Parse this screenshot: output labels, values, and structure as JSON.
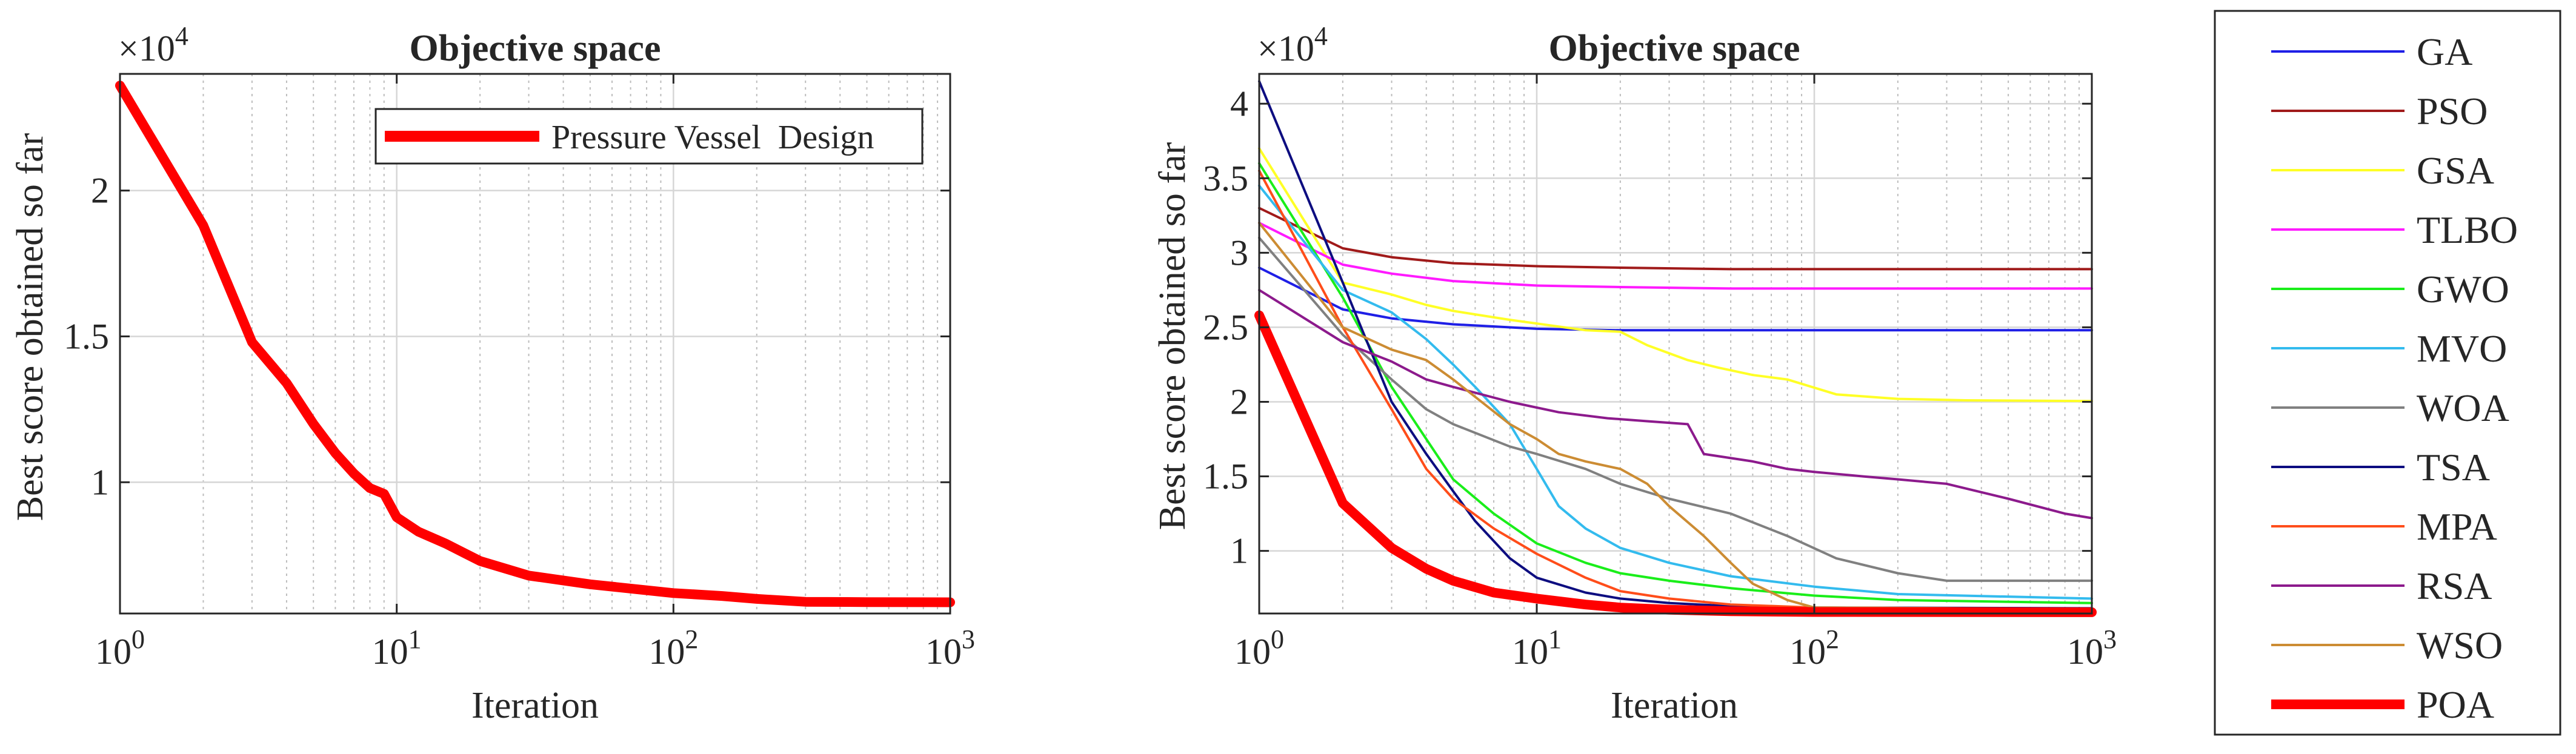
{
  "chart_data": [
    {
      "type": "line",
      "title": "Objective space",
      "xlabel": "Iteration",
      "ylabel": "Best score obtained so far",
      "xscale": "log",
      "xlim": [
        1,
        1000
      ],
      "ylim": [
        5500,
        24000
      ],
      "y_multiplier": "×10^4",
      "y_multiplier_base": "×10",
      "y_multiplier_exp": "4",
      "x_ticks": [
        {
          "value": 1,
          "base": "10",
          "exp": "0"
        },
        {
          "value": 10,
          "base": "10",
          "exp": "1"
        },
        {
          "value": 100,
          "base": "10",
          "exp": "2"
        },
        {
          "value": 1000,
          "base": "10",
          "exp": "3"
        }
      ],
      "y_ticks": [
        {
          "value": 10000,
          "label": "1"
        },
        {
          "value": 15000,
          "label": "1.5"
        },
        {
          "value": 20000,
          "label": "2"
        }
      ],
      "grid": true,
      "legend_position": "top-right",
      "series": [
        {
          "name": "Pressure Vessel  Design",
          "color": "#ff0000",
          "width": "thick",
          "x": [
            1,
            2,
            3,
            4,
            5,
            6,
            7,
            8,
            9,
            10,
            12,
            15,
            20,
            30,
            50,
            100,
            150,
            200,
            300,
            500,
            1000
          ],
          "y": [
            23600,
            18800,
            14800,
            13400,
            12000,
            11000,
            10300,
            9800,
            9600,
            8800,
            8300,
            7900,
            7300,
            6800,
            6500,
            6200,
            6100,
            6000,
            5900,
            5890,
            5885
          ]
        }
      ]
    },
    {
      "type": "line",
      "title": "Objective space",
      "xlabel": "Iteration",
      "ylabel": "Best score obtained so far",
      "xscale": "log",
      "xlim": [
        1,
        1000
      ],
      "ylim": [
        5800,
        42000
      ],
      "y_multiplier": "×10^4",
      "y_multiplier_base": "×10",
      "y_multiplier_exp": "4",
      "x_ticks": [
        {
          "value": 1,
          "base": "10",
          "exp": "0"
        },
        {
          "value": 10,
          "base": "10",
          "exp": "1"
        },
        {
          "value": 100,
          "base": "10",
          "exp": "2"
        },
        {
          "value": 1000,
          "base": "10",
          "exp": "3"
        }
      ],
      "y_ticks": [
        {
          "value": 10000,
          "label": "1"
        },
        {
          "value": 15000,
          "label": "1.5"
        },
        {
          "value": 20000,
          "label": "2"
        },
        {
          "value": 25000,
          "label": "2.5"
        },
        {
          "value": 30000,
          "label": "3"
        },
        {
          "value": 35000,
          "label": "3.5"
        },
        {
          "value": 40000,
          "label": "4"
        }
      ],
      "grid": true,
      "legend_position": "outside-right",
      "series": [
        {
          "name": "GA",
          "color": "#1f1fe6",
          "width": "normal",
          "x": [
            1,
            2,
            3,
            5,
            10,
            20,
            50,
            100,
            1000
          ],
          "y": [
            29000,
            26200,
            25600,
            25200,
            24900,
            24800,
            24800,
            24800,
            24800
          ]
        },
        {
          "name": "PSO",
          "color": "#a01a1a",
          "width": "normal",
          "x": [
            1,
            2,
            3,
            5,
            10,
            20,
            50,
            100,
            1000
          ],
          "y": [
            33000,
            30300,
            29700,
            29300,
            29100,
            29000,
            28900,
            28900,
            28900
          ]
        },
        {
          "name": "GSA",
          "color": "#ffff26",
          "width": "normal",
          "x": [
            1,
            2,
            3,
            4,
            5,
            8,
            15,
            20,
            25,
            35,
            45,
            60,
            80,
            120,
            200,
            350,
            1000
          ],
          "y": [
            37000,
            28000,
            27200,
            26500,
            26100,
            25500,
            24800,
            24700,
            23800,
            22800,
            22300,
            21800,
            21500,
            20500,
            20200,
            20100,
            20050
          ]
        },
        {
          "name": "TLBO",
          "color": "#ff1aff",
          "width": "normal",
          "x": [
            1,
            2,
            3,
            5,
            10,
            20,
            50,
            100,
            1000
          ],
          "y": [
            32000,
            29200,
            28600,
            28100,
            27800,
            27700,
            27600,
            27600,
            27600
          ]
        },
        {
          "name": "GWO",
          "color": "#1aee1a",
          "width": "normal",
          "x": [
            1,
            2,
            3,
            4,
            5,
            7,
            10,
            15,
            20,
            30,
            50,
            100,
            200,
            1000
          ],
          "y": [
            36000,
            27000,
            21000,
            17500,
            14800,
            12500,
            10500,
            9200,
            8500,
            8000,
            7500,
            7000,
            6700,
            6500
          ]
        },
        {
          "name": "MVO",
          "color": "#33bbee",
          "width": "normal",
          "x": [
            1,
            2,
            3,
            4,
            5,
            6,
            8,
            10,
            12,
            15,
            20,
            30,
            50,
            100,
            200,
            1000
          ],
          "y": [
            34500,
            27500,
            26000,
            24200,
            22500,
            21000,
            18500,
            15500,
            13000,
            11500,
            10200,
            9200,
            8300,
            7600,
            7100,
            6800
          ]
        },
        {
          "name": "WOA",
          "color": "#808080",
          "width": "normal",
          "x": [
            1,
            2,
            3,
            4,
            5,
            8,
            10,
            15,
            20,
            30,
            50,
            80,
            120,
            200,
            300,
            1000
          ],
          "y": [
            31000,
            24500,
            21500,
            19500,
            18500,
            17000,
            16500,
            15500,
            14500,
            13500,
            12500,
            11000,
            9500,
            8500,
            8000,
            8000
          ]
        },
        {
          "name": "TSA",
          "color": "#0d0d80",
          "width": "normal",
          "x": [
            1,
            2,
            3,
            4,
            5,
            6,
            8,
            10,
            15,
            20,
            30,
            50,
            100,
            1000
          ],
          "y": [
            41500,
            28000,
            20000,
            16500,
            14000,
            12000,
            9500,
            8200,
            7200,
            6800,
            6500,
            6300,
            6200,
            6150
          ]
        },
        {
          "name": "MPA",
          "color": "#ff4d1a",
          "width": "normal",
          "x": [
            1,
            2,
            3,
            4,
            5,
            7,
            10,
            15,
            20,
            30,
            50,
            100,
            1000
          ],
          "y": [
            35500,
            25000,
            19500,
            15500,
            13500,
            11500,
            9800,
            8200,
            7300,
            6800,
            6400,
            6200,
            6100
          ]
        },
        {
          "name": "RSA",
          "color": "#8c1a8c",
          "width": "normal",
          "x": [
            1,
            2,
            3,
            4,
            5,
            8,
            12,
            18,
            25,
            35,
            40,
            60,
            80,
            100,
            150,
            200,
            300,
            500,
            800,
            1000
          ],
          "y": [
            27500,
            24000,
            22700,
            21500,
            21000,
            20000,
            19300,
            18900,
            18700,
            18500,
            16500,
            16000,
            15500,
            15300,
            15000,
            14800,
            14500,
            13500,
            12500,
            12200
          ]
        },
        {
          "name": "WSO",
          "color": "#cc8c33",
          "width": "normal",
          "x": [
            1,
            2,
            3,
            4,
            5,
            8,
            10,
            12,
            15,
            20,
            25,
            30,
            40,
            50,
            60,
            80,
            100,
            1000
          ],
          "y": [
            32000,
            25000,
            23500,
            22800,
            21500,
            18500,
            17500,
            16500,
            16000,
            15500,
            14500,
            13000,
            11000,
            9200,
            7800,
            6700,
            6200,
            6100
          ]
        },
        {
          "name": "POA",
          "color": "#ff0000",
          "width": "thick",
          "x": [
            1,
            2,
            3,
            4,
            5,
            7,
            10,
            15,
            20,
            30,
            50,
            100,
            1000
          ],
          "y": [
            25800,
            13200,
            10200,
            8800,
            8000,
            7200,
            6800,
            6400,
            6200,
            6050,
            5950,
            5900,
            5885
          ]
        }
      ]
    }
  ]
}
